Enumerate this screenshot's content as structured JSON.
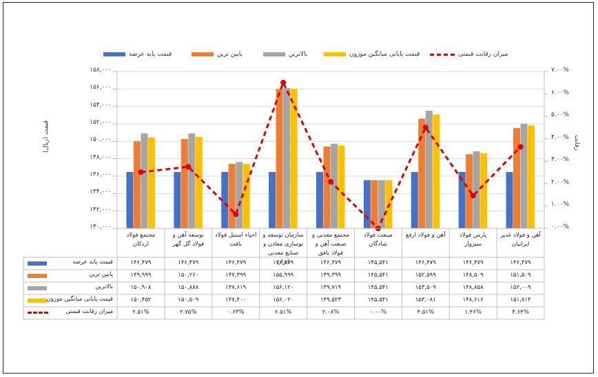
{
  "chart_data": {
    "type": "bar",
    "categories": [
      "مجتمع فولاد اردکان",
      "توسعه آهن و فولاد گل گهر",
      "احیاء استیل فولاد بافت",
      "سازمان توسعه و نوسازی معادن و صنایع معدنی ایران",
      "مجتمع معدنی و صنعت آهن و فولاد بافق",
      "صنعت فولاد شادگان",
      "آهن و فولاد ارفع",
      "پارس فولاد سبزوار",
      "آهن و فولاد غدیر ایرانیان"
    ],
    "series": [
      {
        "name": "قیمت پایه عرضه",
        "color": "#4472c4",
        "values": [
          146479,
          146479,
          146479,
          146479,
          146479,
          145541,
          146479,
          146479,
          146479
        ]
      },
      {
        "name": "پایین ترین",
        "color": "#ed7d31",
        "values": [
          149999,
          150260,
          147399,
          155999,
          149399,
          145541,
          152599,
          148509,
          151509
        ]
      },
      {
        "name": "بالاترین",
        "color": "#a5a5a5",
        "values": [
          150908,
          150888,
          147619,
          156120,
          149719,
          145541,
          153509,
          148858,
          152009
        ]
      },
      {
        "name": "قیمت پایانی میانگین موزون",
        "color": "#ffc000",
        "values": [
          150452,
          150509,
          147400,
          156020,
          149523,
          145541,
          153081,
          148616,
          151813
        ]
      }
    ],
    "line_series": {
      "name": "میزان رقابت قیمتی",
      "color": "#e00000",
      "values": [
        2.51,
        2.75,
        0.63,
        6.51,
        2.08,
        0.0,
        4.51,
        1.46,
        3.64
      ]
    },
    "ylim": [
      140000,
      158000
    ],
    "yticks": [
      "۱۴۰,۰۰۰",
      "۱۴۲,۰۰۰",
      "۱۴۴,۰۰۰",
      "۱۴۶,۰۰۰",
      "۱۴۸,۰۰۰",
      "۱۵۰,۰۰۰",
      "۱۵۲,۰۰۰",
      "۱۵۴,۰۰۰",
      "۱۵۶,۰۰۰",
      "۱۵۸,۰۰۰"
    ],
    "y2lim": [
      0,
      7
    ],
    "y2ticks": [
      "۰.۰۰%",
      "۱.۰۰%",
      "۲.۰۰%",
      "۳.۰۰%",
      "۴.۰۰%",
      "۵.۰۰%",
      "۶.۰۰%",
      "۷.۰۰%"
    ],
    "ylabel": "قیمت (ریال)",
    "y2label": "رقابت",
    "legend_position": "top",
    "table_rows": [
      [
        "۱۴۶,۴۷۹",
        "۱۴۶,۴۷۹",
        "۱۴۶,۴۷۹",
        "۱۴۶,۴۷۹",
        "۱۴۶,۴۷۹",
        "۱۴۵,۵۴۱",
        "۱۴۶,۴۷۹",
        "۱۴۶,۴۷۹",
        "۱۴۶,۴۷۹"
      ],
      [
        "۱۴۹,۹۹۹",
        "۱۵۰,۲۶۰",
        "۱۴۷,۳۹۹",
        "۱۵۵,۹۹۹",
        "۱۴۹,۳۹۹",
        "۱۴۵,۵۴۱",
        "۱۵۲,۵۹۹",
        "۱۴۸,۵۰۹",
        "۱۵۱,۵۰۹"
      ],
      [
        "۱۵۰,۹۰۸",
        "۱۵۰,۸۸۸",
        "۱۴۷,۶۱۹",
        "۱۵۶,۱۲۰",
        "۱۴۹,۷۱۹",
        "۱۴۵,۵۴۱",
        "۱۵۳,۵۰۹",
        "۱۴۸,۸۵۸",
        "۱۵۲,۰۰۹"
      ],
      [
        "۱۵۰,۴۵۲",
        "۱۵۰,۵۰۹",
        "۱۴۷,۴۰۰",
        "۱۵۶,۰۲۰",
        "۱۴۹,۵۲۳",
        "۱۴۵,۵۴۱",
        "۱۵۳,۰۸۱",
        "۱۴۸,۶۱۶",
        "۱۵۱,۸۱۳"
      ],
      [
        "۲.۵۱%",
        "۲.۷۵%",
        "۰.۶۳%",
        "۶.۵۱%",
        "۲.۰۸%",
        "۰.۰۰%",
        "۴.۵۱%",
        "۱.۴۶%",
        "۳.۶۴%"
      ]
    ]
  }
}
